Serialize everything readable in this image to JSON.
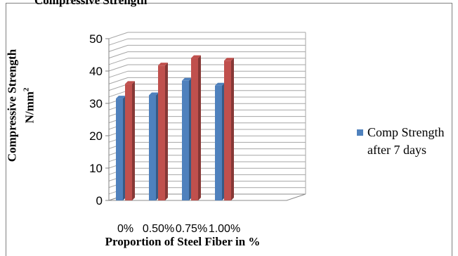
{
  "header": {
    "title_fragment": "Compressive Strength"
  },
  "chart_data": {
    "type": "bar",
    "title": "",
    "categories": [
      "0%",
      "0.50%",
      "0.75%",
      "1.00%"
    ],
    "series": [
      {
        "name": "Comp Strength after 7 days",
        "values": [
          31.5,
          32.5,
          37,
          35.5
        ],
        "color": "#4f81bd"
      },
      {
        "name": "",
        "values": [
          36,
          41.7,
          44,
          43.2
        ],
        "color": "#c0504d"
      }
    ],
    "ylim": [
      0,
      50
    ],
    "yticks": [
      "0",
      "10",
      "20",
      "30",
      "40",
      "50"
    ],
    "xlabel": "Proportion of Steel Fiber in %",
    "ylabel_line1": "Compressive Strength",
    "ylabel_line2": "N/mm",
    "ylabel_sup": "2",
    "grid": true,
    "legend_position": "right"
  }
}
